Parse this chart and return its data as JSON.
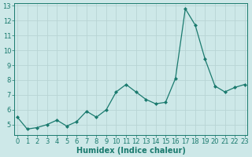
{
  "x": [
    0,
    1,
    2,
    3,
    4,
    5,
    6,
    7,
    8,
    9,
    10,
    11,
    12,
    13,
    14,
    15,
    16,
    17,
    18,
    19,
    20,
    21,
    22,
    23
  ],
  "y": [
    5.5,
    4.7,
    4.8,
    5.0,
    5.3,
    4.9,
    5.2,
    5.9,
    5.5,
    6.0,
    7.2,
    7.7,
    7.2,
    6.7,
    6.4,
    6.5,
    8.1,
    12.8,
    11.7,
    9.4,
    7.6,
    7.2,
    7.5,
    7.7
  ],
  "xlabel": "Humidex (Indice chaleur)",
  "ylim": [
    4.3,
    13.2
  ],
  "xlim": [
    -0.3,
    23.3
  ],
  "yticks": [
    5,
    6,
    7,
    8,
    9,
    10,
    11,
    12,
    13
  ],
  "xticks": [
    0,
    1,
    2,
    3,
    4,
    5,
    6,
    7,
    8,
    9,
    10,
    11,
    12,
    13,
    14,
    15,
    16,
    17,
    18,
    19,
    20,
    21,
    22,
    23
  ],
  "line_color": "#1a7a6e",
  "marker_color": "#1a7a6e",
  "bg_color": "#cde8e8",
  "grid_color": "#b8d4d4",
  "axis_color": "#1a7a6e",
  "tick_label_color": "#1a7a6e",
  "xlabel_color": "#1a7a6e",
  "xlabel_fontsize": 7,
  "tick_fontsize": 6
}
